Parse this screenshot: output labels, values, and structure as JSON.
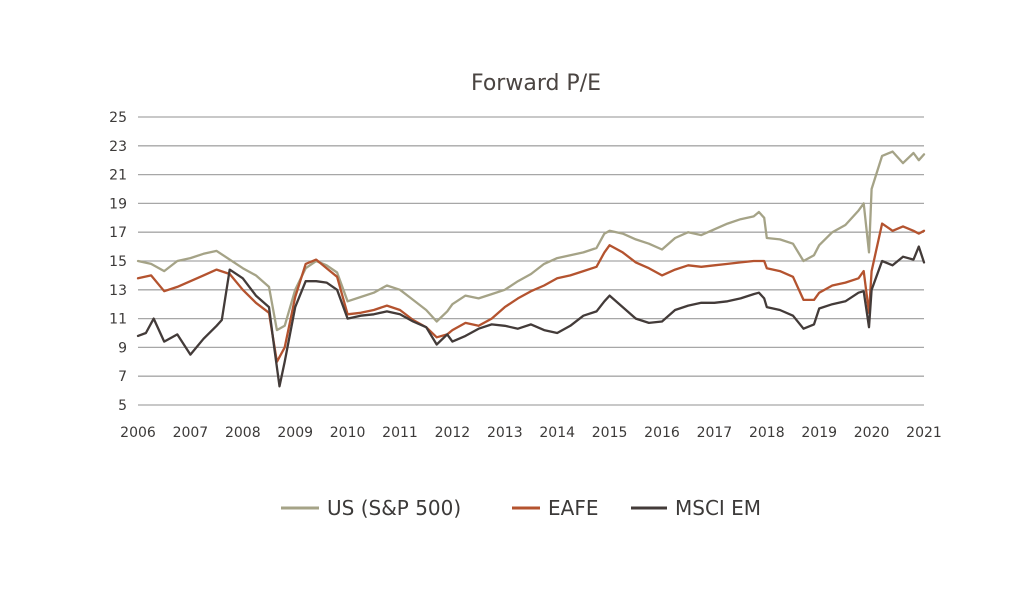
{
  "chart_data": {
    "type": "line",
    "title": "Forward P/E",
    "xlabel": "",
    "ylabel": "",
    "xlim": [
      2006,
      2021
    ],
    "ylim": [
      5,
      25
    ],
    "y_ticks": [
      5,
      7,
      9,
      11,
      13,
      15,
      17,
      19,
      21,
      23,
      25
    ],
    "x_ticks": [
      "2006",
      "2007",
      "2008",
      "2009",
      "2010",
      "2011",
      "2012",
      "2013",
      "2014",
      "2015",
      "2016",
      "2017",
      "2018",
      "2019",
      "2020",
      "2021"
    ],
    "grid": true,
    "legend_position": "bottom",
    "series": [
      {
        "name": "US (S&P 500)",
        "color": "#a5a387",
        "x": [
          2006.0,
          2006.25,
          2006.5,
          2006.75,
          2007.0,
          2007.25,
          2007.5,
          2007.75,
          2008.0,
          2008.25,
          2008.5,
          2008.65,
          2008.8,
          2009.0,
          2009.2,
          2009.4,
          2009.6,
          2009.8,
          2010.0,
          2010.25,
          2010.5,
          2010.75,
          2011.0,
          2011.25,
          2011.5,
          2011.7,
          2011.9,
          2012.0,
          2012.25,
          2012.5,
          2012.75,
          2013.0,
          2013.25,
          2013.5,
          2013.75,
          2014.0,
          2014.25,
          2014.5,
          2014.75,
          2014.9,
          2015.0,
          2015.25,
          2015.5,
          2015.75,
          2016.0,
          2016.25,
          2016.5,
          2016.75,
          2017.0,
          2017.25,
          2017.5,
          2017.75,
          2017.85,
          2017.95,
          2018.0,
          2018.25,
          2018.5,
          2018.7,
          2018.9,
          2019.0,
          2019.25,
          2019.5,
          2019.75,
          2019.85,
          2019.95,
          2020.0,
          2020.2,
          2020.4,
          2020.6,
          2020.8,
          2020.9,
          2021.0
        ],
        "values": [
          15.0,
          14.8,
          14.3,
          15.0,
          15.2,
          15.5,
          15.7,
          15.1,
          14.5,
          14.0,
          13.2,
          10.2,
          10.5,
          13.0,
          14.5,
          15.0,
          14.7,
          14.2,
          12.2,
          12.5,
          12.8,
          13.3,
          13.0,
          12.3,
          11.6,
          10.8,
          11.5,
          12.0,
          12.6,
          12.4,
          12.7,
          13.0,
          13.6,
          14.1,
          14.8,
          15.2,
          15.4,
          15.6,
          15.9,
          16.9,
          17.1,
          16.9,
          16.5,
          16.2,
          15.8,
          16.6,
          17.0,
          16.8,
          17.2,
          17.6,
          17.9,
          18.1,
          18.4,
          18.0,
          16.6,
          16.5,
          16.2,
          15.0,
          15.4,
          16.1,
          17.0,
          17.5,
          18.5,
          19.0,
          15.6,
          20.0,
          22.3,
          22.6,
          21.8,
          22.5,
          22.0,
          22.4
        ]
      },
      {
        "name": "EAFE",
        "color": "#b4532f",
        "x": [
          2006.0,
          2006.25,
          2006.5,
          2006.75,
          2007.0,
          2007.25,
          2007.5,
          2007.75,
          2008.0,
          2008.25,
          2008.5,
          2008.65,
          2008.8,
          2009.0,
          2009.2,
          2009.4,
          2009.6,
          2009.8,
          2010.0,
          2010.25,
          2010.5,
          2010.75,
          2011.0,
          2011.25,
          2011.5,
          2011.7,
          2011.9,
          2012.0,
          2012.25,
          2012.5,
          2012.75,
          2013.0,
          2013.25,
          2013.5,
          2013.75,
          2014.0,
          2014.25,
          2014.5,
          2014.75,
          2014.9,
          2015.0,
          2015.25,
          2015.5,
          2015.75,
          2016.0,
          2016.25,
          2016.5,
          2016.75,
          2017.0,
          2017.25,
          2017.5,
          2017.75,
          2017.85,
          2017.95,
          2018.0,
          2018.25,
          2018.5,
          2018.7,
          2018.9,
          2019.0,
          2019.25,
          2019.5,
          2019.75,
          2019.85,
          2019.95,
          2020.0,
          2020.2,
          2020.4,
          2020.6,
          2020.8,
          2020.9,
          2021.0
        ],
        "values": [
          13.8,
          14.0,
          12.9,
          13.2,
          13.6,
          14.0,
          14.4,
          14.1,
          13.0,
          12.1,
          11.4,
          8.0,
          9.0,
          12.5,
          14.8,
          15.1,
          14.5,
          13.9,
          11.3,
          11.4,
          11.6,
          11.9,
          11.6,
          10.9,
          10.4,
          9.7,
          9.9,
          10.2,
          10.7,
          10.5,
          11.0,
          11.8,
          12.4,
          12.9,
          13.3,
          13.8,
          14.0,
          14.3,
          14.6,
          15.6,
          16.1,
          15.6,
          14.9,
          14.5,
          14.0,
          14.4,
          14.7,
          14.6,
          14.7,
          14.8,
          14.9,
          15.0,
          15.0,
          15.0,
          14.5,
          14.3,
          13.9,
          12.3,
          12.3,
          12.8,
          13.3,
          13.5,
          13.8,
          14.3,
          11.4,
          14.3,
          17.6,
          17.1,
          17.4,
          17.1,
          16.9,
          17.1
        ]
      },
      {
        "name": "MSCI EM",
        "color": "#433b39",
        "x": [
          2006.0,
          2006.15,
          2006.3,
          2006.5,
          2006.75,
          2007.0,
          2007.25,
          2007.5,
          2007.6,
          2007.75,
          2008.0,
          2008.25,
          2008.5,
          2008.6,
          2008.7,
          2008.8,
          2009.0,
          2009.2,
          2009.4,
          2009.6,
          2009.8,
          2010.0,
          2010.25,
          2010.5,
          2010.75,
          2011.0,
          2011.25,
          2011.5,
          2011.7,
          2011.9,
          2012.0,
          2012.25,
          2012.5,
          2012.75,
          2013.0,
          2013.25,
          2013.5,
          2013.75,
          2014.0,
          2014.25,
          2014.5,
          2014.75,
          2014.9,
          2015.0,
          2015.25,
          2015.5,
          2015.75,
          2016.0,
          2016.25,
          2016.5,
          2016.75,
          2017.0,
          2017.25,
          2017.5,
          2017.75,
          2017.85,
          2017.95,
          2018.0,
          2018.25,
          2018.5,
          2018.7,
          2018.9,
          2019.0,
          2019.25,
          2019.5,
          2019.75,
          2019.85,
          2019.95,
          2020.0,
          2020.2,
          2020.4,
          2020.6,
          2020.8,
          2020.9,
          2021.0
        ],
        "values": [
          9.8,
          10.0,
          11.0,
          9.4,
          9.9,
          8.5,
          9.6,
          10.5,
          10.9,
          14.4,
          13.8,
          12.6,
          11.8,
          9.0,
          6.3,
          8.0,
          11.8,
          13.6,
          13.6,
          13.5,
          13.0,
          11.0,
          11.2,
          11.3,
          11.5,
          11.3,
          10.8,
          10.4,
          9.2,
          9.9,
          9.4,
          9.8,
          10.3,
          10.6,
          10.5,
          10.3,
          10.6,
          10.2,
          10.0,
          10.5,
          11.2,
          11.5,
          12.2,
          12.6,
          11.8,
          11.0,
          10.7,
          10.8,
          11.6,
          11.9,
          12.1,
          12.1,
          12.2,
          12.4,
          12.7,
          12.8,
          12.4,
          11.8,
          11.6,
          11.2,
          10.3,
          10.6,
          11.7,
          12.0,
          12.2,
          12.8,
          12.9,
          10.4,
          13.0,
          15.0,
          14.7,
          15.3,
          15.1,
          16.0,
          14.9
        ]
      }
    ]
  }
}
